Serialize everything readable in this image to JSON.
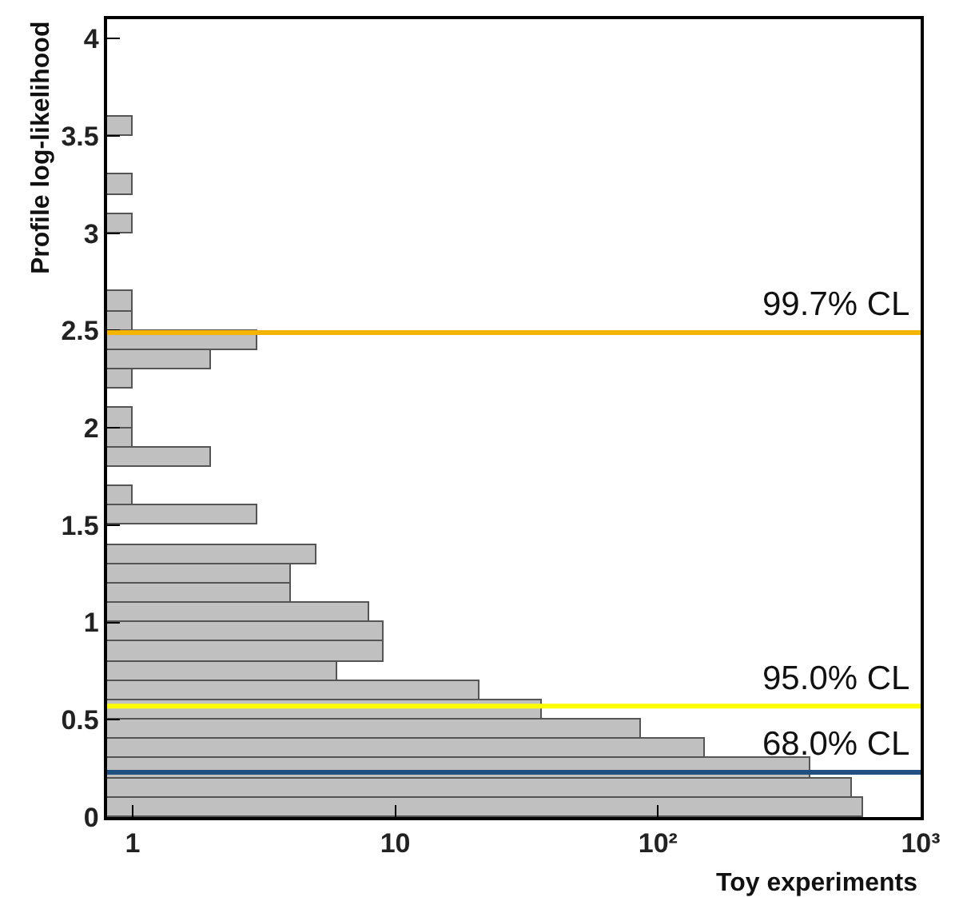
{
  "chart_data": {
    "type": "histogram",
    "orientation": "horizontal",
    "log": "x",
    "xlabel": "Toy experiments",
    "ylabel": "Profile log-likelihood",
    "bins": [
      0,
      0.1,
      0.2,
      0.3,
      0.4,
      0.5,
      0.6,
      0.7,
      0.8,
      0.9,
      1,
      1.1,
      1.2,
      1.3,
      1.4,
      1.5,
      1.6,
      1.7,
      1.8,
      1.9,
      2,
      2.1,
      2.2,
      2.3,
      2.4,
      2.5,
      2.6,
      2.7,
      2.8,
      2.9,
      3,
      3.1,
      3.2,
      3.3,
      3.4,
      3.5,
      3.6,
      3.7,
      3.8,
      3.9,
      4,
      4.1
    ],
    "values": [
      600,
      550,
      380,
      150,
      86,
      36,
      21,
      6,
      9,
      9,
      8,
      4,
      4,
      5,
      null,
      3,
      1,
      null,
      2,
      1,
      1,
      null,
      1,
      2,
      3,
      1,
      1,
      null,
      null,
      null,
      1,
      null,
      1,
      null,
      null,
      1,
      null,
      null,
      null,
      null,
      null
    ],
    "color": "#c0c0c0",
    "xlim": [
      0.8,
      1000
    ],
    "xticks": [
      1,
      10,
      {
        "value": 100,
        "label": "10²"
      },
      {
        "value": 1000,
        "label": "10³"
      }
    ],
    "ylim": [
      0,
      4.1
    ],
    "yticks": [
      0,
      0.5,
      1,
      1.5,
      2,
      2.5,
      3,
      3.5,
      4
    ],
    "ref_lines": [
      {
        "axis": "y",
        "value": 2.49,
        "label": "99.7% CL",
        "color": "#f5b400"
      },
      {
        "axis": "y",
        "value": 0.57,
        "label": "95.0% CL",
        "color": "#ffff00"
      },
      {
        "axis": "y",
        "value": 0.23,
        "label": "68.0% CL",
        "color": "#1f5080"
      }
    ],
    "grid": false
  }
}
